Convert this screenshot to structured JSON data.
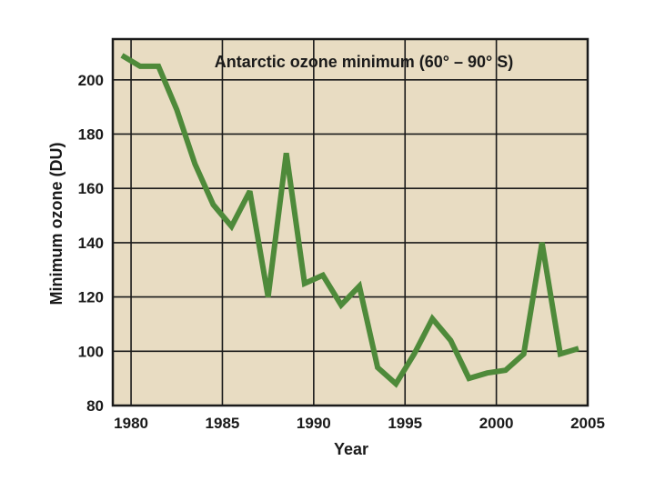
{
  "chart_data": {
    "type": "line",
    "title": "Antarctic ozone minimum (60° – 90° S)",
    "xlabel": "Year",
    "ylabel": "Minimum ozone (DU)",
    "xlim": [
      1979,
      2005
    ],
    "ylim": [
      80,
      215
    ],
    "x_ticks": [
      1980,
      1985,
      1990,
      1995,
      2000,
      2005
    ],
    "y_ticks": [
      80,
      100,
      120,
      140,
      160,
      180,
      200
    ],
    "grid": true,
    "legend": "none",
    "colors": {
      "plot_background": "#e8dcc2",
      "line": "#4e8a3a",
      "grid": "#1a1a1a",
      "frame": "#1a1a1a"
    },
    "series": [
      {
        "x": [
          1979.5,
          1980.5,
          1981.5,
          1982.5,
          1983.5,
          1984.5,
          1985.5,
          1986.5,
          1987.5,
          1988.5,
          1989.5,
          1990.5,
          1991.5,
          1992.5,
          1993.5,
          1994.5,
          1995.5,
          1996.5,
          1997.5,
          1998.5,
          1999.5,
          2000.5,
          2001.5,
          2002.5,
          2003.5,
          2004.5
        ],
        "values": [
          209,
          205,
          205,
          189,
          169,
          154,
          146,
          159,
          120,
          173,
          125,
          128,
          117,
          124,
          94,
          88,
          99,
          112,
          104,
          90,
          92,
          93,
          99,
          140,
          99,
          101
        ]
      }
    ]
  }
}
